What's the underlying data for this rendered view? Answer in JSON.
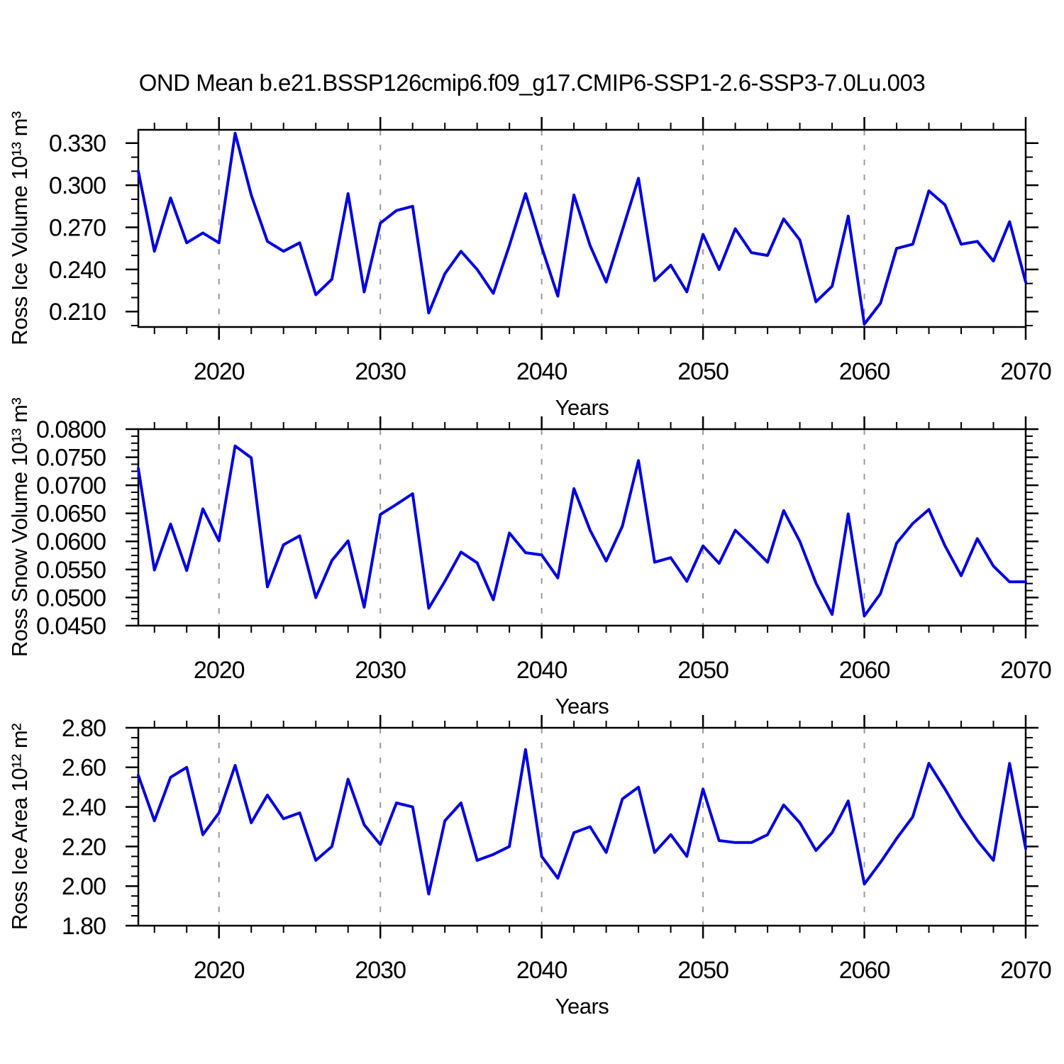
{
  "title": "OND Mean b.e21.BSSP126cmip6.f09_g17.CMIP6-SSP1-2.6-SSP3-7.0Lu.003",
  "colors": {
    "line": "#0000dd",
    "grid": "#999999",
    "axis": "#000000",
    "background": "#ffffff"
  },
  "chart_data": {
    "type": "line",
    "title": "OND Mean b.e21.BSSP126cmip6.f09_g17.CMIP6-SSP1-2.6-SSP3-7.0Lu.003",
    "xlabel": "Years",
    "xlim": [
      2015,
      2070
    ],
    "x_tick_labels": [
      "2020",
      "2030",
      "2040",
      "2050",
      "2060",
      "2070"
    ],
    "x_tick_values": [
      2020,
      2030,
      2040,
      2050,
      2060,
      2070
    ],
    "x_grid_values": [
      2020,
      2030,
      2040,
      2050,
      2060
    ],
    "x_minor_start": 2016,
    "x_minor_step": 2,
    "grid_style": "dashed-vertical",
    "x": [
      2015,
      2016,
      2017,
      2018,
      2019,
      2020,
      2021,
      2022,
      2023,
      2024,
      2025,
      2026,
      2027,
      2028,
      2029,
      2030,
      2031,
      2032,
      2033,
      2034,
      2035,
      2036,
      2037,
      2038,
      2039,
      2040,
      2041,
      2042,
      2043,
      2044,
      2045,
      2046,
      2047,
      2048,
      2049,
      2050,
      2051,
      2052,
      2053,
      2054,
      2055,
      2056,
      2057,
      2058,
      2059,
      2060,
      2061,
      2062,
      2063,
      2064,
      2065,
      2066,
      2067,
      2068,
      2069,
      2070
    ],
    "panels": [
      {
        "name": "ross-ice-volume",
        "ylabel": "Ross Ice Volume 10¹³ m³",
        "ylim": [
          0.199,
          0.3395
        ],
        "y_tick_labels": [
          "0.330",
          "0.300",
          "0.270",
          "0.240",
          "0.210"
        ],
        "y_tick_values": [
          0.33,
          0.3,
          0.27,
          0.24,
          0.21
        ],
        "y_minor_start": 0.2,
        "y_minor_step": 0.01,
        "values": [
          0.31,
          0.253,
          0.291,
          0.259,
          0.266,
          0.259,
          0.337,
          0.293,
          0.26,
          0.253,
          0.259,
          0.222,
          0.233,
          0.294,
          0.224,
          0.273,
          0.282,
          0.285,
          0.209,
          0.237,
          0.253,
          0.24,
          0.223,
          0.257,
          0.294,
          0.256,
          0.221,
          0.293,
          0.257,
          0.231,
          0.268,
          0.305,
          0.232,
          0.243,
          0.224,
          0.265,
          0.24,
          0.269,
          0.252,
          0.25,
          0.276,
          0.261,
          0.217,
          0.228,
          0.278,
          0.201,
          0.216,
          0.255,
          0.258,
          0.296,
          0.286,
          0.258,
          0.26,
          0.246,
          0.274,
          0.231
        ]
      },
      {
        "name": "ross-snow-volume",
        "ylabel": "Ross Snow Volume 10¹³ m³",
        "ylim": [
          0.045,
          0.08
        ],
        "y_tick_labels": [
          "0.0800",
          "0.0750",
          "0.0700",
          "0.0650",
          "0.0600",
          "0.0550",
          "0.0500",
          "0.0450"
        ],
        "y_tick_values": [
          0.08,
          0.075,
          0.07,
          0.065,
          0.06,
          0.055,
          0.05,
          0.045
        ],
        "y_minor_start": 0.04625,
        "y_minor_step": 0.00125,
        "values": [
          0.073,
          0.0549,
          0.0631,
          0.0548,
          0.0658,
          0.0601,
          0.077,
          0.0749,
          0.0519,
          0.0594,
          0.061,
          0.05,
          0.0566,
          0.0601,
          0.0483,
          0.0648,
          0.0666,
          0.0685,
          0.0481,
          0.0529,
          0.0581,
          0.0562,
          0.0496,
          0.0615,
          0.058,
          0.0576,
          0.0535,
          0.0694,
          0.062,
          0.0565,
          0.0627,
          0.0744,
          0.0563,
          0.0571,
          0.0529,
          0.0592,
          0.0561,
          0.062,
          0.0592,
          0.0563,
          0.0655,
          0.06,
          0.0526,
          0.047,
          0.0649,
          0.0467,
          0.0507,
          0.0597,
          0.0632,
          0.0657,
          0.0592,
          0.0539,
          0.0605,
          0.0556,
          0.0528,
          0.0528
        ]
      },
      {
        "name": "ross-ice-area",
        "ylabel": "Ross Ice Area 10¹² m²",
        "ylim": [
          1.8,
          2.8
        ],
        "y_tick_labels": [
          "2.80",
          "2.60",
          "2.40",
          "2.20",
          "2.00",
          "1.80"
        ],
        "y_tick_values": [
          2.8,
          2.6,
          2.4,
          2.2,
          2.0,
          1.8
        ],
        "y_minor_start": 1.85,
        "y_minor_step": 0.05,
        "values": [
          2.56,
          2.33,
          2.55,
          2.6,
          2.26,
          2.37,
          2.61,
          2.32,
          2.46,
          2.34,
          2.37,
          2.13,
          2.2,
          2.54,
          2.31,
          2.21,
          2.42,
          2.4,
          1.96,
          2.33,
          2.42,
          2.13,
          2.16,
          2.2,
          2.69,
          2.15,
          2.04,
          2.27,
          2.3,
          2.17,
          2.44,
          2.5,
          2.17,
          2.26,
          2.15,
          2.49,
          2.23,
          2.22,
          2.22,
          2.26,
          2.41,
          2.32,
          2.18,
          2.27,
          2.43,
          2.01,
          2.12,
          2.24,
          2.35,
          2.62,
          2.49,
          2.35,
          2.23,
          2.13,
          2.62,
          2.19
        ]
      }
    ]
  }
}
